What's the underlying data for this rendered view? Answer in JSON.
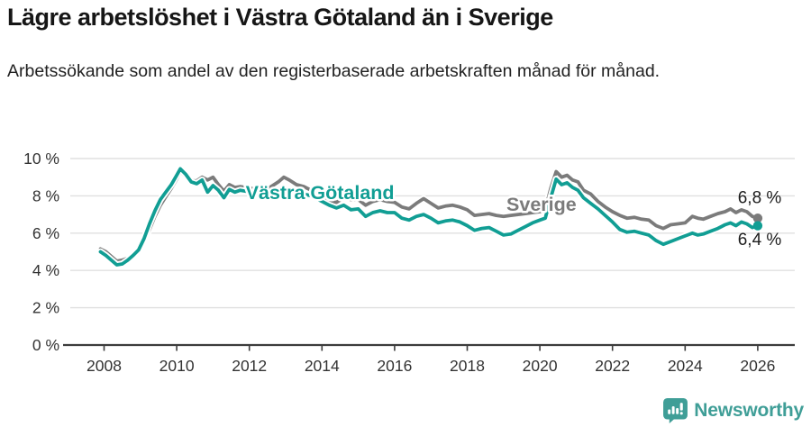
{
  "header": {
    "title": "Lägre arbetslöshet i Västra Götaland än i Sverige",
    "subtitle": "Arbetssökande som andel av den registerbaserade arbetskraften månad för månad."
  },
  "chart_data": {
    "type": "line",
    "title": "Lägre arbetslöshet i Västra Götaland än i Sverige",
    "subtitle": "Arbetssökande som andel av den registerbaserade arbetskraften månad för månad.",
    "unit": "%",
    "grid": true,
    "legend_position": "inline-labels",
    "xlim": [
      2007.8,
      2027.0
    ],
    "ylim": [
      0,
      10
    ],
    "x_ticks": [
      2008,
      2010,
      2012,
      2014,
      2016,
      2018,
      2020,
      2022,
      2024,
      2026
    ],
    "y_ticks": [
      {
        "value": 0,
        "label": "0 %"
      },
      {
        "value": 2,
        "label": "2 %"
      },
      {
        "value": 4,
        "label": "4 %"
      },
      {
        "value": 6,
        "label": "6 %"
      },
      {
        "value": 8,
        "label": "8 %"
      },
      {
        "value": 10,
        "label": "10 %"
      }
    ],
    "colors": {
      "grid": "#e0e0e0",
      "axis": "#3c3c3c",
      "tick_text": "#333333",
      "end_label_text": "#1d1d1d"
    },
    "series": [
      {
        "name": "Sverige",
        "color": "#7b7b7b",
        "label": {
          "year": 2019.08,
          "pct": 7.2
        },
        "end": {
          "year": 2026.0,
          "value": 6.8,
          "label": "6,8 %",
          "label_anchor": {
            "year": 2025.45,
            "pct": 7.62
          }
        },
        "points": [
          [
            2007.9,
            5.15
          ],
          [
            2008.05,
            5.0
          ],
          [
            2008.2,
            4.75
          ],
          [
            2008.35,
            4.5
          ],
          [
            2008.5,
            4.55
          ],
          [
            2008.65,
            4.65
          ],
          [
            2008.8,
            4.85
          ],
          [
            2008.95,
            5.1
          ],
          [
            2009.1,
            5.6
          ],
          [
            2009.25,
            6.2
          ],
          [
            2009.4,
            6.9
          ],
          [
            2009.55,
            7.5
          ],
          [
            2009.7,
            7.95
          ],
          [
            2009.85,
            8.4
          ],
          [
            2010.0,
            8.9
          ],
          [
            2010.1,
            9.3
          ],
          [
            2010.25,
            9.05
          ],
          [
            2010.4,
            8.8
          ],
          [
            2010.55,
            8.8
          ],
          [
            2010.7,
            9.0
          ],
          [
            2010.85,
            8.85
          ],
          [
            2011.0,
            9.0
          ],
          [
            2011.15,
            8.6
          ],
          [
            2011.3,
            8.25
          ],
          [
            2011.45,
            8.6
          ],
          [
            2011.6,
            8.45
          ],
          [
            2011.75,
            8.5
          ],
          [
            2011.9,
            8.45
          ],
          [
            2012.05,
            8.4
          ],
          [
            2012.2,
            8.3
          ],
          [
            2012.4,
            8.25
          ],
          [
            2012.6,
            8.5
          ],
          [
            2012.8,
            8.75
          ],
          [
            2012.95,
            9.0
          ],
          [
            2013.1,
            8.85
          ],
          [
            2013.3,
            8.6
          ],
          [
            2013.5,
            8.5
          ],
          [
            2013.7,
            8.3
          ],
          [
            2013.85,
            8.1
          ],
          [
            2014.0,
            7.95
          ],
          [
            2014.2,
            7.7
          ],
          [
            2014.4,
            7.65
          ],
          [
            2014.6,
            7.9
          ],
          [
            2014.8,
            7.8
          ],
          [
            2015.0,
            7.8
          ],
          [
            2015.2,
            7.5
          ],
          [
            2015.4,
            7.7
          ],
          [
            2015.6,
            7.8
          ],
          [
            2015.8,
            7.7
          ],
          [
            2016.0,
            7.65
          ],
          [
            2016.2,
            7.4
          ],
          [
            2016.4,
            7.3
          ],
          [
            2016.6,
            7.6
          ],
          [
            2016.8,
            7.85
          ],
          [
            2017.0,
            7.6
          ],
          [
            2017.2,
            7.35
          ],
          [
            2017.4,
            7.45
          ],
          [
            2017.6,
            7.5
          ],
          [
            2017.8,
            7.4
          ],
          [
            2018.0,
            7.25
          ],
          [
            2018.2,
            6.95
          ],
          [
            2018.4,
            7.0
          ],
          [
            2018.6,
            7.05
          ],
          [
            2018.8,
            6.95
          ],
          [
            2019.0,
            6.9
          ],
          [
            2019.2,
            6.95
          ],
          [
            2019.4,
            7.0
          ],
          [
            2019.6,
            7.05
          ],
          [
            2019.8,
            7.1
          ],
          [
            2020.0,
            7.15
          ],
          [
            2020.15,
            7.25
          ],
          [
            2020.3,
            8.4
          ],
          [
            2020.45,
            9.3
          ],
          [
            2020.6,
            9.0
          ],
          [
            2020.75,
            9.1
          ],
          [
            2020.9,
            8.85
          ],
          [
            2021.05,
            8.75
          ],
          [
            2021.2,
            8.3
          ],
          [
            2021.4,
            8.1
          ],
          [
            2021.6,
            7.7
          ],
          [
            2021.8,
            7.4
          ],
          [
            2022.0,
            7.15
          ],
          [
            2022.2,
            6.95
          ],
          [
            2022.4,
            6.8
          ],
          [
            2022.6,
            6.85
          ],
          [
            2022.8,
            6.75
          ],
          [
            2023.0,
            6.7
          ],
          [
            2023.2,
            6.4
          ],
          [
            2023.4,
            6.25
          ],
          [
            2023.6,
            6.45
          ],
          [
            2023.8,
            6.5
          ],
          [
            2024.0,
            6.55
          ],
          [
            2024.2,
            6.9
          ],
          [
            2024.35,
            6.8
          ],
          [
            2024.5,
            6.75
          ],
          [
            2024.7,
            6.9
          ],
          [
            2024.9,
            7.05
          ],
          [
            2025.1,
            7.15
          ],
          [
            2025.25,
            7.3
          ],
          [
            2025.4,
            7.1
          ],
          [
            2025.55,
            7.25
          ],
          [
            2025.7,
            7.15
          ],
          [
            2025.85,
            6.9
          ],
          [
            2026.0,
            6.8
          ]
        ]
      },
      {
        "name": "Västra Götaland",
        "color": "#119e94",
        "label": {
          "year": 2011.9,
          "pct": 7.83
        },
        "end": {
          "year": 2026.0,
          "value": 6.4,
          "label": "6,4 %",
          "label_anchor": {
            "year": 2025.45,
            "pct": 5.36
          }
        },
        "points": [
          [
            2007.9,
            5.0
          ],
          [
            2008.05,
            4.8
          ],
          [
            2008.2,
            4.55
          ],
          [
            2008.35,
            4.3
          ],
          [
            2008.5,
            4.35
          ],
          [
            2008.65,
            4.55
          ],
          [
            2008.8,
            4.8
          ],
          [
            2008.95,
            5.1
          ],
          [
            2009.1,
            5.7
          ],
          [
            2009.25,
            6.5
          ],
          [
            2009.4,
            7.2
          ],
          [
            2009.55,
            7.8
          ],
          [
            2009.7,
            8.2
          ],
          [
            2009.85,
            8.6
          ],
          [
            2010.0,
            9.1
          ],
          [
            2010.1,
            9.45
          ],
          [
            2010.25,
            9.15
          ],
          [
            2010.4,
            8.75
          ],
          [
            2010.55,
            8.65
          ],
          [
            2010.7,
            8.85
          ],
          [
            2010.85,
            8.2
          ],
          [
            2011.0,
            8.55
          ],
          [
            2011.15,
            8.3
          ],
          [
            2011.3,
            7.9
          ],
          [
            2011.45,
            8.35
          ],
          [
            2011.6,
            8.2
          ],
          [
            2011.75,
            8.3
          ],
          [
            2011.9,
            8.25
          ],
          [
            2012.05,
            8.2
          ],
          [
            2012.2,
            8.1
          ],
          [
            2012.4,
            8.0
          ],
          [
            2012.6,
            8.15
          ],
          [
            2012.8,
            8.3
          ],
          [
            2012.95,
            8.4
          ],
          [
            2013.1,
            8.3
          ],
          [
            2013.3,
            8.2
          ],
          [
            2013.5,
            8.1
          ],
          [
            2013.7,
            8.0
          ],
          [
            2013.85,
            7.85
          ],
          [
            2014.0,
            7.7
          ],
          [
            2014.2,
            7.5
          ],
          [
            2014.4,
            7.35
          ],
          [
            2014.6,
            7.5
          ],
          [
            2014.8,
            7.25
          ],
          [
            2015.0,
            7.3
          ],
          [
            2015.2,
            6.9
          ],
          [
            2015.4,
            7.1
          ],
          [
            2015.6,
            7.2
          ],
          [
            2015.8,
            7.1
          ],
          [
            2016.0,
            7.1
          ],
          [
            2016.2,
            6.8
          ],
          [
            2016.4,
            6.7
          ],
          [
            2016.6,
            6.9
          ],
          [
            2016.8,
            7.0
          ],
          [
            2017.0,
            6.8
          ],
          [
            2017.2,
            6.55
          ],
          [
            2017.4,
            6.65
          ],
          [
            2017.6,
            6.7
          ],
          [
            2017.8,
            6.6
          ],
          [
            2018.0,
            6.4
          ],
          [
            2018.2,
            6.15
          ],
          [
            2018.4,
            6.25
          ],
          [
            2018.6,
            6.3
          ],
          [
            2018.8,
            6.1
          ],
          [
            2019.0,
            5.9
          ],
          [
            2019.2,
            5.95
          ],
          [
            2019.4,
            6.15
          ],
          [
            2019.6,
            6.35
          ],
          [
            2019.8,
            6.55
          ],
          [
            2020.0,
            6.7
          ],
          [
            2020.15,
            6.8
          ],
          [
            2020.3,
            7.9
          ],
          [
            2020.45,
            8.9
          ],
          [
            2020.6,
            8.6
          ],
          [
            2020.75,
            8.7
          ],
          [
            2020.9,
            8.45
          ],
          [
            2021.05,
            8.3
          ],
          [
            2021.2,
            7.9
          ],
          [
            2021.4,
            7.6
          ],
          [
            2021.6,
            7.3
          ],
          [
            2021.8,
            6.95
          ],
          [
            2022.0,
            6.6
          ],
          [
            2022.2,
            6.2
          ],
          [
            2022.4,
            6.05
          ],
          [
            2022.6,
            6.1
          ],
          [
            2022.8,
            6.0
          ],
          [
            2023.0,
            5.9
          ],
          [
            2023.2,
            5.6
          ],
          [
            2023.4,
            5.4
          ],
          [
            2023.6,
            5.55
          ],
          [
            2023.8,
            5.7
          ],
          [
            2024.0,
            5.85
          ],
          [
            2024.2,
            6.0
          ],
          [
            2024.35,
            5.9
          ],
          [
            2024.5,
            5.95
          ],
          [
            2024.7,
            6.1
          ],
          [
            2024.9,
            6.25
          ],
          [
            2025.1,
            6.45
          ],
          [
            2025.25,
            6.55
          ],
          [
            2025.4,
            6.4
          ],
          [
            2025.55,
            6.6
          ],
          [
            2025.7,
            6.5
          ],
          [
            2025.85,
            6.3
          ],
          [
            2026.0,
            6.4
          ]
        ]
      }
    ]
  },
  "footer": {
    "brand": "Newsworthy",
    "logo_icon": "newsworthy-speech-bubble-bar-chart-icon",
    "brand_color": "#3f9e97"
  }
}
